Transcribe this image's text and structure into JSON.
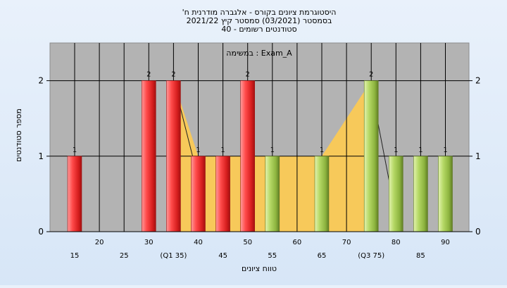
{
  "chart_data": {
    "type": "bar",
    "title_lines": [
      "'היסטוגרמת ציונים בקורס - אלגברה מודרנית ח",
      "בסמסטר  (03/2021)  סמסטר קיץ  2021/22",
      "סטודנטים רשומים - 40"
    ],
    "subtitle": "במשימה : Exam_A",
    "ylabel": "מספר סטודנטים",
    "xlabel": "טווח ציונים",
    "ylim": [
      0,
      2.45
    ],
    "yticks": [
      0,
      1,
      2
    ],
    "xticks": [
      {
        "x": 15,
        "label": "15"
      },
      {
        "x": 20,
        "label": "20"
      },
      {
        "x": 25,
        "label": "25"
      },
      {
        "x": 30,
        "label": "30"
      },
      {
        "x": 35,
        "label": "(Q1 35)"
      },
      {
        "x": 40,
        "label": "40"
      },
      {
        "x": 45,
        "label": "45"
      },
      {
        "x": 50,
        "label": "50"
      },
      {
        "x": 55,
        "label": "55"
      },
      {
        "x": 60,
        "label": "60"
      },
      {
        "x": 65,
        "label": "65"
      },
      {
        "x": 70,
        "label": "70"
      },
      {
        "x": 75,
        "label": "(Q3 75)"
      },
      {
        "x": 80,
        "label": "80"
      },
      {
        "x": 85,
        "label": "85"
      },
      {
        "x": 90,
        "label": "90"
      }
    ],
    "bars": [
      {
        "x": 15,
        "value": 1,
        "group": "red"
      },
      {
        "x": 30,
        "value": 2,
        "group": "red"
      },
      {
        "x": 35,
        "value": 2,
        "group": "red"
      },
      {
        "x": 40,
        "value": 1,
        "group": "red"
      },
      {
        "x": 45,
        "value": 1,
        "group": "red"
      },
      {
        "x": 50,
        "value": 2,
        "group": "red"
      },
      {
        "x": 55,
        "value": 1,
        "group": "green"
      },
      {
        "x": 65,
        "value": 1,
        "group": "green"
      },
      {
        "x": 75,
        "value": 2,
        "group": "green"
      },
      {
        "x": 80,
        "value": 1,
        "group": "green"
      },
      {
        "x": 85,
        "value": 1,
        "group": "green"
      },
      {
        "x": 90,
        "value": 1,
        "group": "green"
      }
    ],
    "value_labels": [
      {
        "x": 15,
        "label": "1"
      },
      {
        "x": 30,
        "label": "2"
      },
      {
        "x": 35,
        "label": "2"
      },
      {
        "x": 40,
        "label": "1"
      },
      {
        "x": 45,
        "label": "1"
      },
      {
        "x": 50,
        "label": "2"
      },
      {
        "x": 55,
        "label": "1"
      },
      {
        "x": 65,
        "label": "1"
      },
      {
        "x": 75,
        "label": "2"
      },
      {
        "x": 80,
        "label": "1"
      },
      {
        "x": 85,
        "label": "1"
      },
      {
        "x": 90,
        "label": "1"
      }
    ],
    "area_band": {
      "description_of_shape": "yellow interquartile band",
      "points": [
        [
          35,
          2
        ],
        [
          40,
          1
        ],
        [
          65,
          1
        ],
        [
          75,
          2
        ]
      ]
    },
    "grid": true,
    "colors": {
      "red": "#e53a3a",
      "green": "#9bc24a",
      "band": "#f7c95a",
      "plot_bg": "#b3b3b3"
    }
  }
}
